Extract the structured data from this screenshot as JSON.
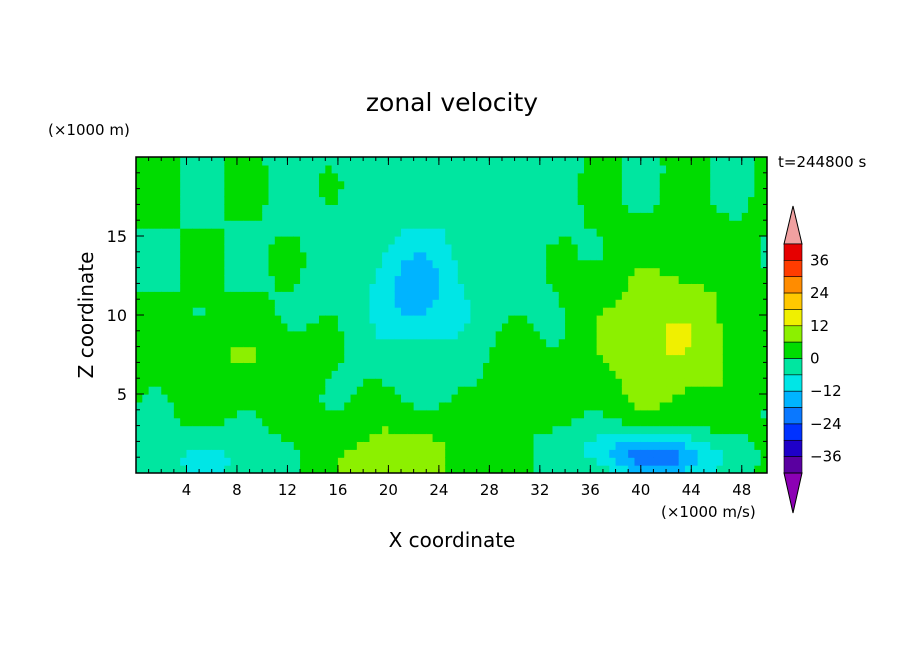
{
  "chart_data": {
    "type": "heatmap",
    "title": "zonal velocity",
    "xlabel": "X coordinate",
    "ylabel": "Z coordinate",
    "y_unit": "(×1000 m)",
    "color_unit": "(×1000 m/s)",
    "time_label": "t=244800 s",
    "xlim": [
      0,
      50
    ],
    "ylim": [
      0,
      20
    ],
    "x_ticks": [
      "4",
      "8",
      "12",
      "16",
      "20",
      "24",
      "28",
      "32",
      "36",
      "40",
      "44",
      "48"
    ],
    "y_ticks": [
      "5",
      "10",
      "15"
    ],
    "colorbar": {
      "levels": [
        -42,
        -36,
        -30,
        -24,
        -18,
        -12,
        -6,
        0,
        6,
        12,
        18,
        24,
        30,
        36,
        42
      ],
      "tick_labels": [
        "36",
        "24",
        "12",
        "0",
        "−12",
        "−24",
        "−36"
      ],
      "tick_values": [
        36,
        24,
        12,
        0,
        -12,
        -24,
        -36
      ],
      "colors": [
        "#8c00b4",
        "#5a00a0",
        "#1e00c8",
        "#0032ff",
        "#0a78ff",
        "#00b4ff",
        "#00e6e6",
        "#00e6a0",
        "#00dc00",
        "#8cf000",
        "#f0f000",
        "#ffc800",
        "#ff8c00",
        "#ff3c00",
        "#e60000",
        "#f0a0a0"
      ]
    },
    "background_level": 0,
    "features": [
      {
        "x": 21,
        "z": 0.8,
        "rx": 6,
        "rz": 3,
        "value": 10
      },
      {
        "x": 42,
        "z": 8.5,
        "rx": 6,
        "rz": 5,
        "value": 12
      },
      {
        "x": 30,
        "z": 6.5,
        "rx": 2.5,
        "rz": 3,
        "value": 5
      },
      {
        "x": 8,
        "z": 7,
        "rx": 6,
        "rz": 2.5,
        "value": 6
      },
      {
        "x": 22,
        "z": 11.5,
        "rx": 3,
        "rz": 3,
        "value": -11
      },
      {
        "x": 24,
        "z": 13,
        "rx": 8,
        "rz": 8,
        "value": -5
      },
      {
        "x": 42,
        "z": 1,
        "rx": 4,
        "rz": 1.5,
        "value": -20
      },
      {
        "x": 38,
        "z": 1.5,
        "rx": 4,
        "rz": 1.5,
        "value": -8
      },
      {
        "x": 6,
        "z": 0.8,
        "rx": 5,
        "rz": 1.5,
        "value": -7
      }
    ]
  }
}
